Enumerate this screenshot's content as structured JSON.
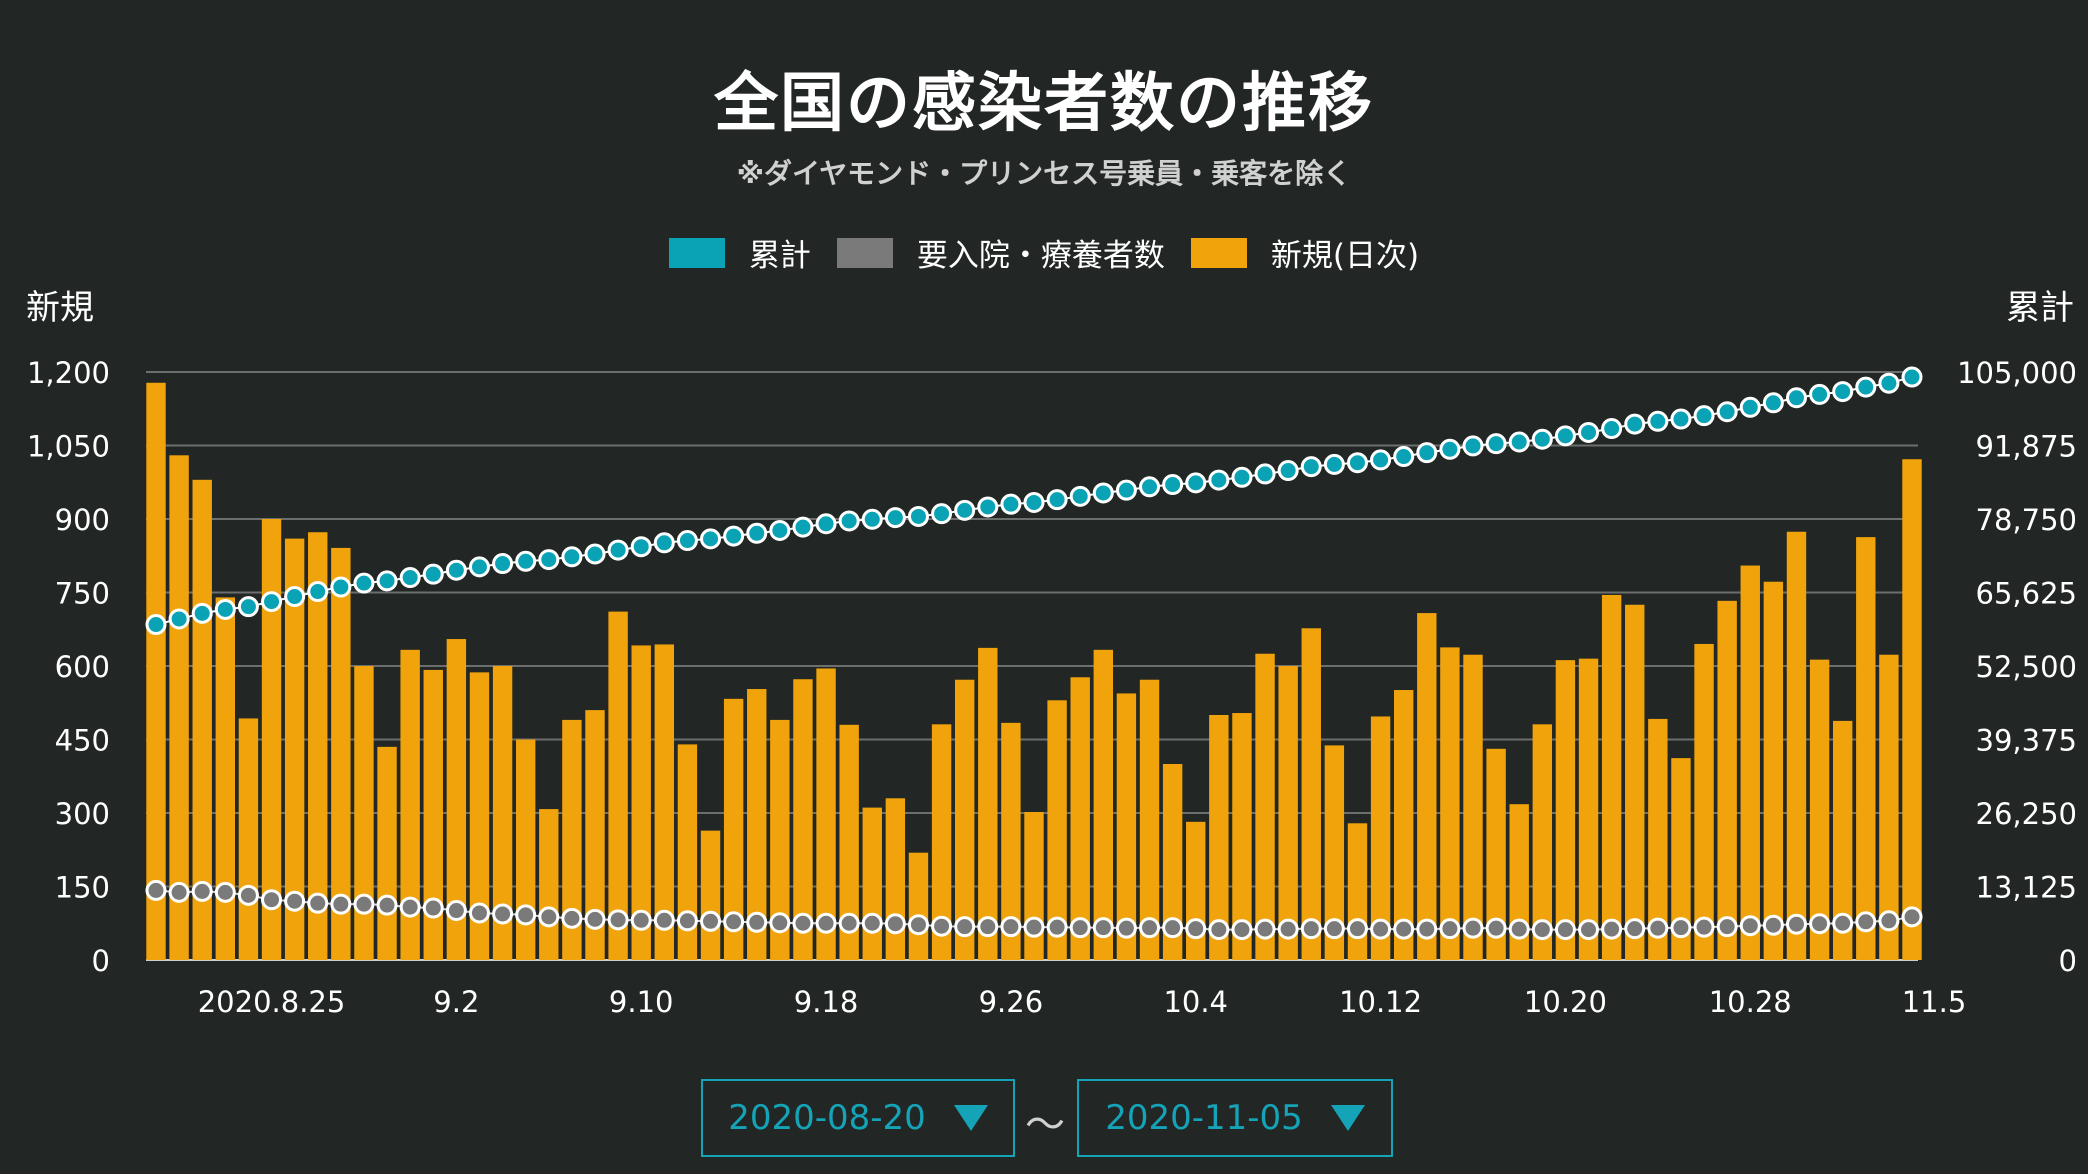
{
  "title": "全国の感染者数の推移",
  "subtitle": "※ダイヤモンド・プリンセス号乗員・乗客を除く",
  "legend": [
    {
      "label": "累計",
      "color": "#0aa3b6"
    },
    {
      "label": "要入院・療養者数",
      "color": "#7a7a7a"
    },
    {
      "label": "新規(日次)",
      "color": "#f0a30a"
    }
  ],
  "left_axis_title": "新規",
  "right_axis_title": "累計",
  "date_range": {
    "start": "2020-08-20",
    "separator": "〜",
    "end": "2020-11-05"
  },
  "chart_data": {
    "type": "bar+line",
    "title": "全国の感染者数の推移",
    "subtitle": "※ダイヤモンド・プリンセス号乗員・乗客を除く",
    "left_axis": {
      "label": "新規",
      "ylim": [
        0,
        1200
      ],
      "ticks": [
        "0",
        "150",
        "300",
        "450",
        "600",
        "750",
        "900",
        "1,050",
        "1,200"
      ]
    },
    "right_axis": {
      "label": "累計",
      "ylim": [
        0,
        105000
      ],
      "ticks": [
        "0",
        "13,125",
        "26,250",
        "39,375",
        "52,500",
        "65,625",
        "78,750",
        "91,875",
        "105,000"
      ]
    },
    "x_tick_labels": [
      {
        "index": 5,
        "label": "2020.8.25"
      },
      {
        "index": 13,
        "label": "9.2"
      },
      {
        "index": 21,
        "label": "9.10"
      },
      {
        "index": 29,
        "label": "9.18"
      },
      {
        "index": 37,
        "label": "9.26"
      },
      {
        "index": 45,
        "label": "10.4"
      },
      {
        "index": 53,
        "label": "10.12"
      },
      {
        "index": 61,
        "label": "10.20"
      },
      {
        "index": 69,
        "label": "10.28"
      },
      {
        "index": 77,
        "label": "11.5"
      }
    ],
    "grid": true,
    "legend_position": "top-center",
    "series": [
      {
        "name": "新規(日次)",
        "type": "bar",
        "axis": "left",
        "color": "#f0a30a",
        "values": [
          1178,
          1030,
          980,
          740,
          493,
          900,
          860,
          873,
          841,
          600,
          435,
          633,
          592,
          655,
          587,
          600,
          450,
          308,
          490,
          510,
          711,
          642,
          644,
          440,
          264,
          533,
          553,
          490,
          573,
          595,
          480,
          311,
          330,
          219,
          481,
          572,
          637,
          484,
          302,
          530,
          577,
          633,
          544,
          572,
          400,
          282,
          500,
          504,
          625,
          600,
          677,
          438,
          279,
          497,
          551,
          708,
          638,
          623,
          431,
          318,
          481,
          612,
          615,
          745,
          725,
          492,
          412,
          645,
          733,
          805,
          772,
          874,
          613,
          488,
          863,
          623,
          1022
        ]
      },
      {
        "name": "累計",
        "type": "line",
        "axis": "right",
        "color": "#0aa3b6",
        "values": [
          59900,
          60900,
          61900,
          62600,
          63100,
          64000,
          64900,
          65800,
          66600,
          67300,
          67700,
          68300,
          68900,
          69600,
          70200,
          70800,
          71200,
          71500,
          72000,
          72500,
          73200,
          73800,
          74500,
          74900,
          75200,
          75700,
          76200,
          76700,
          77300,
          77900,
          78400,
          78700,
          79000,
          79200,
          79700,
          80300,
          80900,
          81400,
          81700,
          82200,
          82800,
          83400,
          83900,
          84500,
          84900,
          85200,
          85700,
          86200,
          86800,
          87400,
          88100,
          88500,
          88800,
          89300,
          89900,
          90600,
          91200,
          91800,
          92200,
          92500,
          93000,
          93600,
          94200,
          94900,
          95700,
          96200,
          96600,
          97200,
          97900,
          98700,
          99500,
          100400,
          101000,
          101500,
          102300,
          103000,
          104100
        ]
      },
      {
        "name": "要入院・療養者数",
        "type": "line",
        "axis": "left",
        "color": "#7a7a7a",
        "values": [
          142,
          138,
          140,
          138,
          132,
          123,
          120,
          116,
          114,
          114,
          112,
          108,
          106,
          101,
          96,
          94,
          92,
          88,
          85,
          83,
          82,
          81,
          81,
          80,
          79,
          78,
          77,
          76,
          75,
          75,
          75,
          75,
          74,
          72,
          69,
          68,
          68,
          68,
          67,
          67,
          66,
          66,
          65,
          66,
          66,
          64,
          62,
          62,
          63,
          63,
          64,
          64,
          64,
          63,
          63,
          63,
          64,
          65,
          65,
          63,
          62,
          62,
          62,
          63,
          64,
          65,
          66,
          67,
          68,
          70,
          71,
          73,
          74,
          75,
          78,
          80,
          88
        ]
      }
    ]
  }
}
